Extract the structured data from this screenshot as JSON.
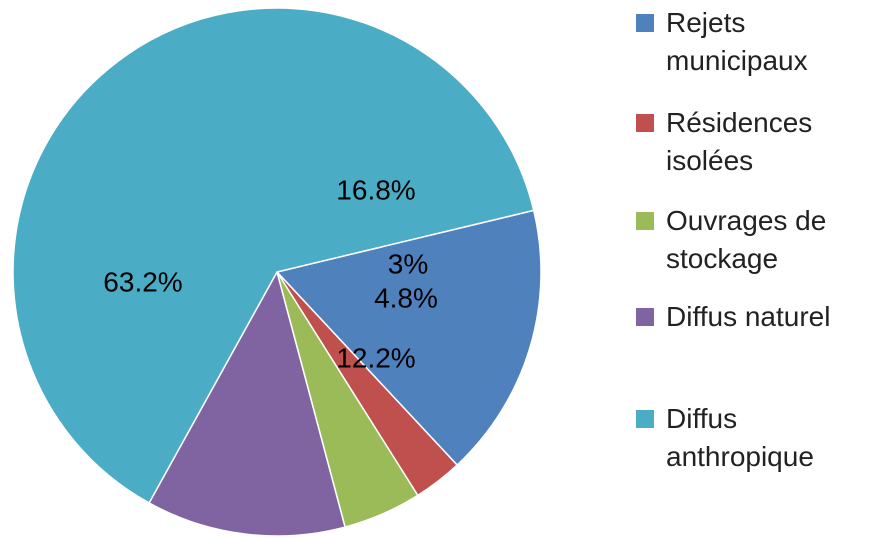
{
  "chart_data": {
    "type": "pie",
    "title": "",
    "slices": [
      {
        "name": "Rejets\nmunicipaux",
        "value": 16.8,
        "label": "16.8%",
        "color": "#4f81bd"
      },
      {
        "name": "Résidences\nisolées",
        "value": 3.0,
        "label": "3%",
        "color": "#c0504d"
      },
      {
        "name": "Ouvrages de\nstockage",
        "value": 4.8,
        "label": "4.8%",
        "color": "#9bbb59"
      },
      {
        "name": "Diffus naturel",
        "value": 12.2,
        "label": "12.2%",
        "color": "#8064a2"
      },
      {
        "name": "Diffus\nanthropique",
        "value": 63.2,
        "label": "63.2%",
        "color": "#4bacc6"
      }
    ],
    "legend_position": "right"
  }
}
